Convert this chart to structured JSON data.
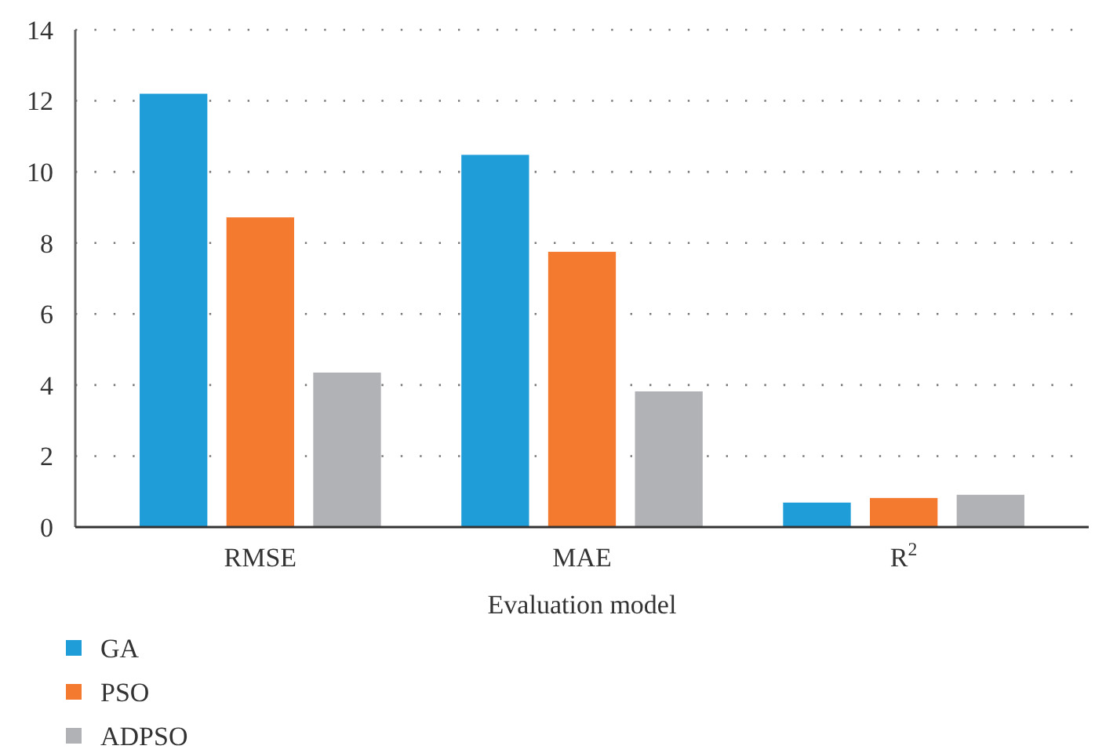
{
  "chart_data": {
    "type": "bar",
    "xlabel": "Evaluation model",
    "categories": [
      "RMSE",
      "MAE",
      "R$^{2}$"
    ],
    "series": [
      {
        "name": "GA",
        "color": "#1f9dd9",
        "values": [
          12.2,
          10.48,
          0.69
        ]
      },
      {
        "name": "PSO",
        "color": "#f47a30",
        "values": [
          8.72,
          7.75,
          0.82
        ]
      },
      {
        "name": "ADPSO",
        "color": "#b1b2b6",
        "values": [
          4.35,
          3.82,
          0.91
        ]
      }
    ],
    "ylim": [
      0,
      14
    ],
    "yticks": [
      0,
      2,
      4,
      6,
      8,
      10,
      12,
      14
    ],
    "grid": "y",
    "legend": "bottom left"
  }
}
